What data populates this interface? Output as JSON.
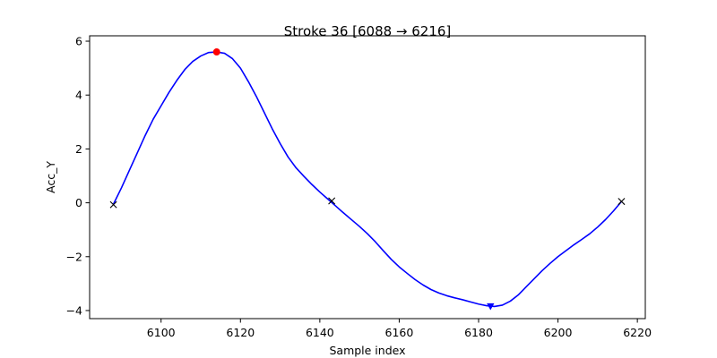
{
  "chart_data": {
    "type": "line",
    "title": "Stroke 36  [6088 → 6216]",
    "xlabel": "Sample index",
    "ylabel": "Acc_Y",
    "xlim": [
      6082,
      6222
    ],
    "ylim": [
      -4.3,
      6.2
    ],
    "x_ticks": [
      6100,
      6120,
      6140,
      6160,
      6180,
      6200,
      6220
    ],
    "y_ticks": [
      -4,
      -2,
      0,
      2,
      4,
      6
    ],
    "y_tick_labels": [
      "−4",
      "−2",
      "0",
      "2",
      "4",
      "6"
    ],
    "grid": false,
    "legend": "none",
    "series": [
      {
        "type": "line",
        "color": "#0000ff",
        "x": [
          6088,
          6090,
          6092,
          6094,
          6096,
          6098,
          6100,
          6102,
          6104,
          6106,
          6108,
          6110,
          6112,
          6114,
          6116,
          6118,
          6120,
          6122,
          6124,
          6126,
          6128,
          6130,
          6132,
          6134,
          6136,
          6138,
          6140,
          6142,
          6144,
          6146,
          6148,
          6150,
          6152,
          6154,
          6156,
          6158,
          6160,
          6162,
          6164,
          6166,
          6168,
          6170,
          6172,
          6174,
          6176,
          6178,
          6180,
          6182,
          6184,
          6186,
          6188,
          6190,
          6192,
          6194,
          6196,
          6198,
          6200,
          6202,
          6204,
          6206,
          6208,
          6210,
          6212,
          6214,
          6216
        ],
        "y": [
          -0.05,
          0.55,
          1.2,
          1.85,
          2.5,
          3.1,
          3.6,
          4.1,
          4.55,
          4.95,
          5.25,
          5.45,
          5.58,
          5.6,
          5.55,
          5.35,
          5.0,
          4.5,
          3.95,
          3.35,
          2.75,
          2.2,
          1.7,
          1.3,
          0.98,
          0.68,
          0.4,
          0.14,
          -0.12,
          -0.38,
          -0.63,
          -0.88,
          -1.15,
          -1.45,
          -1.78,
          -2.1,
          -2.38,
          -2.62,
          -2.85,
          -3.05,
          -3.22,
          -3.35,
          -3.45,
          -3.53,
          -3.6,
          -3.68,
          -3.76,
          -3.82,
          -3.85,
          -3.8,
          -3.65,
          -3.42,
          -3.12,
          -2.82,
          -2.52,
          -2.25,
          -2.0,
          -1.78,
          -1.56,
          -1.36,
          -1.15,
          -0.9,
          -0.62,
          -0.3,
          0.05
        ]
      },
      {
        "type": "scatter",
        "marker": "x",
        "color": "#000000",
        "x": [
          6088,
          6143,
          6216
        ],
        "y": [
          -0.07,
          0.07,
          0.05
        ]
      },
      {
        "type": "scatter",
        "marker": "circle",
        "color": "#ff0000",
        "x": [
          6114
        ],
        "y": [
          5.6
        ]
      },
      {
        "type": "scatter",
        "marker": "triangle-down",
        "color": "#0000ff",
        "x": [
          6183
        ],
        "y": [
          -3.85
        ]
      }
    ]
  }
}
